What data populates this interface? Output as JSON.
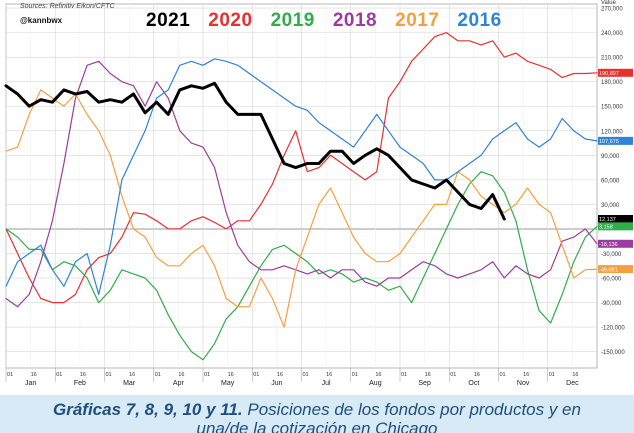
{
  "header": {
    "source": "Sources: Refinitiv Eikon/CFTC",
    "handle": "@kannbwx",
    "value_label": "Value"
  },
  "legend": [
    {
      "label": "2021",
      "color": "#000000"
    },
    {
      "label": "2020",
      "color": "#e8302f"
    },
    {
      "label": "2019",
      "color": "#2fae4a"
    },
    {
      "label": "2018",
      "color": "#9b3d9e"
    },
    {
      "label": "2017",
      "color": "#f5a040"
    },
    {
      "label": "2016",
      "color": "#2f83d8"
    }
  ],
  "footer": {
    "bold_part": "Gráficas 7, 8, 9, 10 y 11.",
    "rest_part": " Posiciones de los fondos por productos y en",
    "line2": "una/de la cotización en Chicago"
  },
  "chart_data": {
    "type": "line",
    "ylim": [
      -170000,
      275000
    ],
    "y_ticks": [
      -150000,
      -120000,
      -90000,
      -60000,
      -30000,
      0,
      30000,
      60000,
      90000,
      120000,
      150000,
      180000,
      210000,
      240000,
      270000
    ],
    "y_tick_labels": [
      "-150,000",
      "-120,000",
      "-90,000",
      "-60,000",
      "-30,000",
      "",
      "30,000",
      "60,000",
      "90,000",
      "120,000",
      "150,000",
      "180,000",
      "210,000",
      "240,000",
      "270,000"
    ],
    "x_range": [
      1,
      52
    ],
    "months": [
      "Jan",
      "Feb",
      "Mar",
      "Apr",
      "May",
      "Jun",
      "Jul",
      "Aug",
      "Sep",
      "Oct",
      "Nov",
      "Dec"
    ],
    "month_day_labels": [
      "01",
      "16"
    ],
    "grid": true,
    "legend_position": "top",
    "last_values": [
      {
        "label": "190,897",
        "value": 190897,
        "color": "#e8302f"
      },
      {
        "label": "107,675",
        "value": 107675,
        "color": "#2f83d8"
      },
      {
        "label": "12,137",
        "value": 12137,
        "color": "#000000"
      },
      {
        "label": "3,158",
        "value": 3158,
        "color": "#2fae4a"
      },
      {
        "label": "-18,136",
        "value": -18136,
        "color": "#9b3d9e"
      },
      {
        "label": "-49,091",
        "value": -49091,
        "color": "#f5a040"
      }
    ],
    "series": [
      {
        "name": "2021",
        "color": "#000000",
        "width": 3,
        "x": [
          1,
          2,
          3,
          4,
          5,
          6,
          7,
          8,
          9,
          10,
          11,
          12,
          13,
          14,
          15,
          16,
          17,
          18,
          19,
          20,
          21,
          22,
          23,
          24,
          25,
          26,
          27,
          28,
          29,
          30,
          31,
          32,
          33,
          34,
          35,
          36,
          37,
          38,
          39,
          40,
          41,
          42,
          43,
          44
        ],
        "y": [
          175000,
          165000,
          150000,
          158000,
          155000,
          170000,
          165000,
          168000,
          155000,
          158000,
          155000,
          165000,
          142000,
          155000,
          140000,
          170000,
          175000,
          172000,
          178000,
          155000,
          140000,
          140000,
          140000,
          110000,
          80000,
          75000,
          80000,
          80000,
          95000,
          95000,
          80000,
          90000,
          98000,
          90000,
          75000,
          60000,
          55000,
          50000,
          60000,
          45000,
          30000,
          25000,
          42000,
          12137
        ]
      },
      {
        "name": "2020",
        "color": "#e8302f",
        "width": 1.2,
        "x": [
          1,
          2,
          3,
          4,
          5,
          6,
          7,
          8,
          9,
          10,
          11,
          12,
          13,
          14,
          15,
          16,
          17,
          18,
          19,
          20,
          21,
          22,
          23,
          24,
          25,
          26,
          27,
          28,
          29,
          30,
          31,
          32,
          33,
          34,
          35,
          36,
          37,
          38,
          39,
          40,
          41,
          42,
          43,
          44,
          45,
          46,
          47,
          48,
          49,
          50,
          51,
          52
        ],
        "y": [
          0,
          -30000,
          -60000,
          -85000,
          -90000,
          -90000,
          -80000,
          -50000,
          -35000,
          -30000,
          -10000,
          20000,
          18000,
          10000,
          0,
          0,
          10000,
          15000,
          8000,
          0,
          10000,
          10000,
          30000,
          55000,
          90000,
          120000,
          70000,
          75000,
          90000,
          80000,
          70000,
          60000,
          70000,
          160000,
          180000,
          205000,
          220000,
          235000,
          240000,
          230000,
          230000,
          225000,
          230000,
          210000,
          215000,
          205000,
          200000,
          195000,
          185000,
          190000,
          190000,
          190897
        ]
      },
      {
        "name": "2019",
        "color": "#2fae4a",
        "width": 1.2,
        "x": [
          1,
          2,
          3,
          4,
          5,
          6,
          7,
          8,
          9,
          10,
          11,
          12,
          13,
          14,
          15,
          16,
          17,
          18,
          19,
          20,
          21,
          22,
          23,
          24,
          25,
          26,
          27,
          28,
          29,
          30,
          31,
          32,
          33,
          34,
          35,
          36,
          37,
          38,
          39,
          40,
          41,
          42,
          43,
          44,
          45,
          46,
          47,
          48,
          49,
          50,
          51,
          52
        ],
        "y": [
          0,
          -10000,
          -25000,
          -25000,
          -50000,
          -40000,
          -45000,
          -60000,
          -90000,
          -75000,
          -50000,
          -55000,
          -60000,
          -75000,
          -105000,
          -130000,
          -150000,
          -160000,
          -140000,
          -110000,
          -95000,
          -70000,
          -45000,
          -25000,
          -20000,
          -30000,
          -40000,
          -55000,
          -50000,
          -55000,
          -65000,
          -60000,
          -65000,
          -75000,
          -70000,
          -90000,
          -60000,
          -30000,
          0,
          30000,
          55000,
          70000,
          65000,
          45000,
          10000,
          -50000,
          -100000,
          -115000,
          -80000,
          -40000,
          -10000,
          3158
        ]
      },
      {
        "name": "2018",
        "color": "#9b3d9e",
        "width": 1.2,
        "x": [
          1,
          2,
          3,
          4,
          5,
          6,
          7,
          8,
          9,
          10,
          11,
          12,
          13,
          14,
          15,
          16,
          17,
          18,
          19,
          20,
          21,
          22,
          23,
          24,
          25,
          26,
          27,
          28,
          29,
          30,
          31,
          32,
          33,
          34,
          35,
          36,
          37,
          38,
          39,
          40,
          41,
          42,
          43,
          44,
          45,
          46,
          47,
          48,
          49,
          50,
          51,
          52
        ],
        "y": [
          -85000,
          -95000,
          -80000,
          -40000,
          10000,
          80000,
          160000,
          200000,
          205000,
          190000,
          180000,
          175000,
          150000,
          180000,
          160000,
          120000,
          105000,
          100000,
          75000,
          20000,
          -20000,
          -40000,
          -50000,
          -50000,
          -45000,
          -50000,
          -55000,
          -50000,
          -60000,
          -50000,
          -50000,
          -65000,
          -70000,
          -60000,
          -60000,
          -50000,
          -40000,
          -45000,
          -55000,
          -60000,
          -55000,
          -50000,
          -40000,
          -60000,
          -45000,
          -55000,
          -60000,
          -50000,
          -15000,
          -10000,
          0,
          -18136
        ]
      },
      {
        "name": "2017",
        "color": "#f5a040",
        "width": 1.2,
        "x": [
          1,
          2,
          3,
          4,
          5,
          6,
          7,
          8,
          9,
          10,
          11,
          12,
          13,
          14,
          15,
          16,
          17,
          18,
          19,
          20,
          21,
          22,
          23,
          24,
          25,
          26,
          27,
          28,
          29,
          30,
          31,
          32,
          33,
          34,
          35,
          36,
          37,
          38,
          39,
          40,
          41,
          42,
          43,
          44,
          45,
          46,
          47,
          48,
          49,
          50,
          51,
          52
        ],
        "y": [
          95000,
          100000,
          140000,
          170000,
          160000,
          150000,
          165000,
          140000,
          120000,
          90000,
          40000,
          0,
          -10000,
          -35000,
          -45000,
          -45000,
          -30000,
          -20000,
          -45000,
          -85000,
          -95000,
          -95000,
          -60000,
          -85000,
          -120000,
          -50000,
          -10000,
          30000,
          50000,
          20000,
          -10000,
          -30000,
          -40000,
          -40000,
          -30000,
          -10000,
          10000,
          30000,
          30000,
          70000,
          60000,
          40000,
          30000,
          20000,
          30000,
          50000,
          30000,
          20000,
          -20000,
          -60000,
          -50000,
          -49091
        ]
      },
      {
        "name": "2016",
        "color": "#2f83d8",
        "width": 1.2,
        "x": [
          1,
          2,
          3,
          4,
          5,
          6,
          7,
          8,
          9,
          10,
          11,
          12,
          13,
          14,
          15,
          16,
          17,
          18,
          19,
          20,
          21,
          22,
          23,
          24,
          25,
          26,
          27,
          28,
          29,
          30,
          31,
          32,
          33,
          34,
          35,
          36,
          37,
          38,
          39,
          40,
          41,
          42,
          43,
          44,
          45,
          46,
          47,
          48,
          49,
          50,
          51,
          52
        ],
        "y": [
          -70000,
          -40000,
          -30000,
          -20000,
          -50000,
          -70000,
          -40000,
          -30000,
          -80000,
          -20000,
          60000,
          90000,
          120000,
          160000,
          170000,
          200000,
          205000,
          200000,
          208000,
          205000,
          200000,
          190000,
          180000,
          170000,
          160000,
          150000,
          145000,
          130000,
          120000,
          110000,
          100000,
          120000,
          140000,
          120000,
          100000,
          90000,
          80000,
          60000,
          60000,
          70000,
          80000,
          90000,
          110000,
          120000,
          130000,
          110000,
          100000,
          110000,
          135000,
          120000,
          110000,
          107675
        ]
      }
    ]
  }
}
